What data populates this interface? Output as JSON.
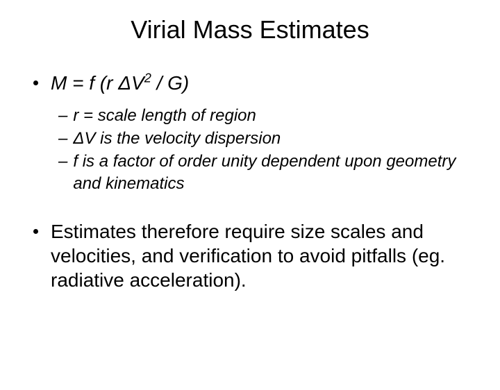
{
  "title": "Virial Mass Estimates",
  "bullets": {
    "eq_prefix": "M = f (r ΔV",
    "eq_sup": "2",
    "eq_suffix": " / G)",
    "sub1": "r = scale length of region",
    "sub2": "ΔV is the velocity dispersion",
    "sub3": "f is a factor of order unity dependent upon geometry and kinematics",
    "b2": "Estimates therefore require size scales and velocities, and verification to avoid pitfalls (eg. radiative acceleration)."
  },
  "style": {
    "background": "#ffffff",
    "text_color": "#000000",
    "title_fontsize": 36,
    "l1_fontsize": 28,
    "l2_fontsize": 24,
    "font_family": "Arial"
  }
}
